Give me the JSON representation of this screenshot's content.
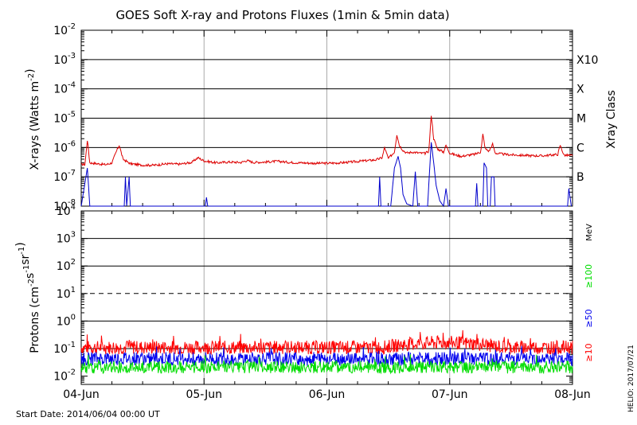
{
  "chart_data": [
    {
      "type": "line",
      "panel": "xray",
      "title": "GOES Soft X-ray and Protons Fluxes   (1min & 5min data)",
      "ylabel": "X-rays (Watts m⁻²)",
      "yscale": "log",
      "ylim": [
        1e-08,
        0.01
      ],
      "y_tick_labels": [
        {
          "base": "10",
          "exp": "-8"
        },
        {
          "base": "10",
          "exp": "-7"
        },
        {
          "base": "10",
          "exp": "-6"
        },
        {
          "base": "10",
          "exp": "-5"
        },
        {
          "base": "10",
          "exp": "-4"
        },
        {
          "base": "10",
          "exp": "-3"
        },
        {
          "base": "10",
          "exp": "-2"
        }
      ],
      "right_axis_title": "Xray Class",
      "class_labels": [
        {
          "label": "B",
          "flux": 1e-07
        },
        {
          "label": "C",
          "flux": 1e-06
        },
        {
          "label": "M",
          "flux": 1e-05
        },
        {
          "label": "X",
          "flux": 0.0001
        },
        {
          "label": "X10",
          "flux": 0.001
        }
      ],
      "grid": true,
      "x_unit": "days since 2014-06-04 00:00 UT",
      "xlim": [
        0,
        4
      ],
      "series": [
        {
          "color": "#dd0000",
          "points": [
            [
              0,
              2.7e-07
            ],
            [
              0.03,
              2.6e-07
            ],
            [
              0.05,
              1.8e-06
            ],
            [
              0.07,
              3e-07
            ],
            [
              0.2,
              2.6e-07
            ],
            [
              0.25,
              3e-07
            ],
            [
              0.29,
              8e-07
            ],
            [
              0.31,
              1.2e-06
            ],
            [
              0.34,
              4e-07
            ],
            [
              0.4,
              2.8e-07
            ],
            [
              0.5,
              2.5e-07
            ],
            [
              0.6,
              2.5e-07
            ],
            [
              0.7,
              2.8e-07
            ],
            [
              0.8,
              2.7e-07
            ],
            [
              0.9,
              3.1e-07
            ],
            [
              0.95,
              4.5e-07
            ],
            [
              1.0,
              3.5e-07
            ],
            [
              1.1,
              3e-07
            ],
            [
              1.2,
              3.2e-07
            ],
            [
              1.3,
              3.1e-07
            ],
            [
              1.35,
              3.6e-07
            ],
            [
              1.4,
              3.1e-07
            ],
            [
              1.5,
              3.2e-07
            ],
            [
              1.6,
              3.4e-07
            ],
            [
              1.7,
              3.1e-07
            ],
            [
              1.8,
              3e-07
            ],
            [
              1.9,
              2.9e-07
            ],
            [
              2.0,
              2.9e-07
            ],
            [
              2.1,
              3e-07
            ],
            [
              2.2,
              3.2e-07
            ],
            [
              2.3,
              3.5e-07
            ],
            [
              2.4,
              3.8e-07
            ],
            [
              2.45,
              4.5e-07
            ],
            [
              2.47,
              1e-06
            ],
            [
              2.5,
              4.2e-07
            ],
            [
              2.55,
              7e-07
            ],
            [
              2.57,
              2.8e-06
            ],
            [
              2.59,
              1.2e-06
            ],
            [
              2.62,
              8e-07
            ],
            [
              2.65,
              6.5e-07
            ],
            [
              2.7,
              7e-07
            ],
            [
              2.75,
              6.5e-07
            ],
            [
              2.8,
              6.3e-07
            ],
            [
              2.83,
              7.5e-07
            ],
            [
              2.85,
              1.3e-05
            ],
            [
              2.87,
              2e-06
            ],
            [
              2.9,
              9e-07
            ],
            [
              2.95,
              7e-07
            ],
            [
              2.97,
              1.2e-06
            ],
            [
              3.0,
              6.5e-07
            ],
            [
              3.05,
              5.5e-07
            ],
            [
              3.1,
              5e-07
            ],
            [
              3.15,
              5.5e-07
            ],
            [
              3.2,
              5.8e-07
            ],
            [
              3.25,
              7e-07
            ],
            [
              3.26,
              1.2e-06
            ],
            [
              3.27,
              2.8e-06
            ],
            [
              3.29,
              9e-07
            ],
            [
              3.32,
              7.5e-07
            ],
            [
              3.35,
              1.3e-06
            ],
            [
              3.37,
              6.5e-07
            ],
            [
              3.45,
              5.8e-07
            ],
            [
              3.55,
              5.5e-07
            ],
            [
              3.65,
              5.3e-07
            ],
            [
              3.75,
              5.2e-07
            ],
            [
              3.82,
              5.5e-07
            ],
            [
              3.88,
              5.8e-07
            ],
            [
              3.9,
              1.2e-06
            ],
            [
              3.93,
              5.5e-07
            ],
            [
              4.0,
              5.3e-07
            ]
          ]
        },
        {
          "color": "#0000cc",
          "points": [
            [
              0.0,
              1e-08
            ],
            [
              0.05,
              2e-07
            ],
            [
              0.07,
              1e-08
            ],
            [
              0.35,
              1e-08
            ],
            [
              0.36,
              1e-07
            ],
            [
              0.37,
              1e-08
            ],
            [
              0.39,
              1e-07
            ],
            [
              0.4,
              1e-08
            ],
            [
              1.01,
              1e-08
            ],
            [
              1.02,
              2e-08
            ],
            [
              1.03,
              1e-08
            ],
            [
              2.42,
              1e-08
            ],
            [
              2.43,
              1e-07
            ],
            [
              2.44,
              1e-08
            ],
            [
              2.52,
              1e-08
            ],
            [
              2.55,
              2e-07
            ],
            [
              2.58,
              5e-07
            ],
            [
              2.6,
              2e-07
            ],
            [
              2.62,
              2.5e-08
            ],
            [
              2.65,
              1.2e-08
            ],
            [
              2.7,
              1e-08
            ],
            [
              2.72,
              1.5e-07
            ],
            [
              2.74,
              1e-08
            ],
            [
              2.82,
              1e-08
            ],
            [
              2.84,
              3e-07
            ],
            [
              2.85,
              1.5e-06
            ],
            [
              2.87,
              3e-07
            ],
            [
              2.89,
              5e-08
            ],
            [
              2.92,
              1.5e-08
            ],
            [
              2.95,
              1e-08
            ],
            [
              2.97,
              4e-08
            ],
            [
              2.99,
              1e-08
            ],
            [
              3.21,
              1e-08
            ],
            [
              3.22,
              6e-08
            ],
            [
              3.23,
              1e-08
            ],
            [
              3.27,
              1e-08
            ],
            [
              3.28,
              3e-07
            ],
            [
              3.3,
              2e-07
            ],
            [
              3.31,
              1e-08
            ],
            [
              3.33,
              1e-08
            ],
            [
              3.34,
              1e-07
            ],
            [
              3.36,
              1e-07
            ],
            [
              3.37,
              1e-08
            ],
            [
              3.96,
              1e-08
            ],
            [
              3.97,
              4e-08
            ],
            [
              3.99,
              1e-08
            ]
          ]
        }
      ]
    },
    {
      "type": "line",
      "panel": "protons",
      "ylabel": "Protons (cm⁻²s⁻¹sr⁻¹)",
      "yscale": "log",
      "ylim": [
        0.005,
        10000.0
      ],
      "y_tick_labels": [
        {
          "base": "10",
          "exp": "-2"
        },
        {
          "base": "10",
          "exp": "-1"
        },
        {
          "base": "10",
          "exp": "0"
        },
        {
          "base": "10",
          "exp": "1"
        },
        {
          "base": "10",
          "exp": "2"
        },
        {
          "base": "10",
          "exp": "3"
        },
        {
          "base": "10",
          "exp": "4"
        }
      ],
      "dashed_threshold": 10,
      "grid": true,
      "right_axis_title": "MeV",
      "x_unit": "days since 2014-06-04 00:00 UT",
      "xlim": [
        0,
        4
      ],
      "xtick_labels": [
        "04-Jun",
        "05-Jun",
        "06-Jun",
        "07-Jun",
        "08-Jun"
      ],
      "series": [
        {
          "name": "≥10",
          "color": "#ff0000",
          "baseline": 0.11,
          "noise": 0.5,
          "bump": {
            "start": 2.45,
            "end": 3.45,
            "factor": 1.5
          }
        },
        {
          "name": "≥50",
          "color": "#0000ee",
          "baseline": 0.042,
          "noise": 0.5
        },
        {
          "name": "≥100",
          "color": "#00dd00",
          "baseline": 0.021,
          "noise": 0.45
        }
      ]
    }
  ],
  "footer": {
    "start_date": "Start Date: 2014/06/04 00:00 UT",
    "credit": "HELIO: 2017/07/21"
  }
}
